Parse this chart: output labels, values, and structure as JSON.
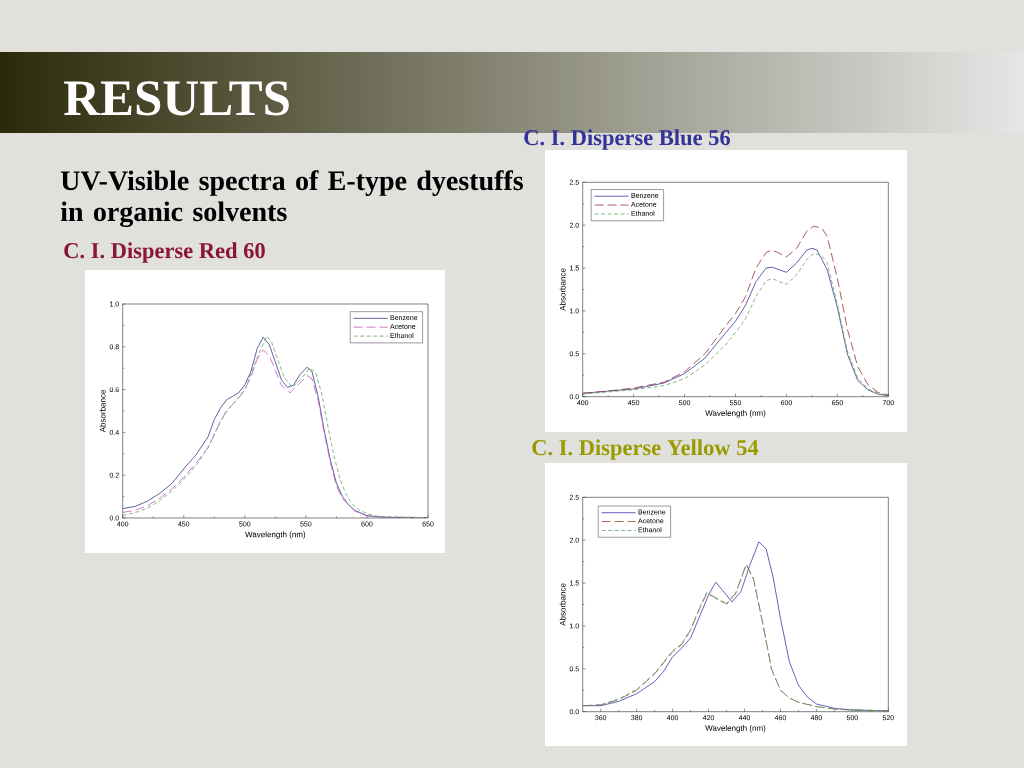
{
  "chart_data": [
    {
      "type": "line",
      "title": "C. I. Disperse Red 60",
      "annotations": [
        "RESULTS",
        "UV-Visible spectra of E-type dyestuffs in organic solvents"
      ],
      "xlabel": "Wavelength (nm)",
      "ylabel": "Absorbance",
      "xlim": [
        400,
        650
      ],
      "ylim": [
        0,
        1
      ],
      "xticks": [
        400,
        450,
        500,
        550,
        600,
        650
      ],
      "yticks": [
        {
          "value": 0,
          "label": "0.0"
        },
        0.2,
        0.4,
        0.6,
        0.8,
        {
          "value": 1,
          "label": "1.0"
        }
      ],
      "legend": "top right",
      "series": [
        {
          "name": "Benzene",
          "color": "#3a3a8c",
          "line_style": "solid",
          "x": [
            400,
            410,
            420,
            430,
            440,
            445,
            450,
            460,
            470,
            475,
            480,
            485,
            490,
            495,
            500,
            505,
            510,
            515,
            520,
            525,
            530,
            535,
            540,
            545,
            551,
            555,
            560,
            565,
            570,
            575,
            580,
            585,
            590,
            600,
            610,
            620,
            650
          ],
          "values": [
            0.044,
            0.054,
            0.078,
            0.114,
            0.16,
            0.194,
            0.23,
            0.295,
            0.38,
            0.46,
            0.513,
            0.552,
            0.568,
            0.586,
            0.622,
            0.684,
            0.79,
            0.845,
            0.81,
            0.73,
            0.645,
            0.61,
            0.622,
            0.669,
            0.705,
            0.684,
            0.568,
            0.41,
            0.272,
            0.163,
            0.1,
            0.062,
            0.036,
            0.011,
            0.005,
            0.003,
            0.002
          ]
        },
        {
          "name": "Acetone",
          "color": "#cc55cc",
          "line_style": "dashed",
          "x": [
            400,
            410,
            420,
            430,
            440,
            450,
            460,
            470,
            480,
            485,
            490,
            495,
            500,
            505,
            510,
            515,
            520,
            525,
            530,
            537,
            545,
            551,
            555,
            560,
            565,
            570,
            575,
            580,
            590,
            600,
            620,
            650
          ],
          "values": [
            0.026,
            0.036,
            0.057,
            0.09,
            0.135,
            0.19,
            0.255,
            0.33,
            0.45,
            0.5,
            0.53,
            0.56,
            0.6,
            0.66,
            0.74,
            0.785,
            0.76,
            0.69,
            0.62,
            0.585,
            0.63,
            0.665,
            0.65,
            0.55,
            0.4,
            0.26,
            0.15,
            0.09,
            0.032,
            0.01,
            0.003,
            0.002
          ]
        },
        {
          "name": "Ethanol",
          "color": "#66aa55",
          "line_style": "dashed",
          "x": [
            400,
            410,
            420,
            430,
            440,
            450,
            460,
            470,
            480,
            485,
            490,
            500,
            505,
            510,
            518,
            522,
            527,
            532,
            539,
            546,
            553,
            558,
            563,
            568,
            573,
            578,
            583,
            588,
            593,
            600,
            610,
            650
          ],
          "values": [
            0.012,
            0.025,
            0.045,
            0.08,
            0.125,
            0.18,
            0.245,
            0.33,
            0.45,
            0.5,
            0.53,
            0.6,
            0.67,
            0.75,
            0.85,
            0.82,
            0.74,
            0.66,
            0.61,
            0.65,
            0.7,
            0.68,
            0.58,
            0.43,
            0.29,
            0.18,
            0.11,
            0.065,
            0.04,
            0.02,
            0.006,
            0.002
          ]
        }
      ]
    },
    {
      "type": "line",
      "title": "C. I. Disperse Blue 56",
      "xlabel": "Wavelength (nm)",
      "ylabel": "Absorbance",
      "xlim": [
        400,
        700
      ],
      "ylim": [
        0,
        2.5
      ],
      "xticks": [
        400,
        450,
        500,
        550,
        600,
        650,
        700
      ],
      "yticks": [
        {
          "value": 0,
          "label": "0.0"
        },
        0.5,
        {
          "value": 1,
          "label": "1.0"
        },
        1.5,
        {
          "value": 2,
          "label": "2.0"
        },
        2.5
      ],
      "legend": "top left",
      "series": [
        {
          "name": "Benzene",
          "color": "#3a3a99",
          "line_style": "solid",
          "x": [
            400,
            420,
            450,
            480,
            500,
            520,
            540,
            550,
            560,
            570,
            580,
            586,
            593,
            600,
            610,
            620,
            625,
            630,
            640,
            650,
            660,
            670,
            680,
            690,
            700
          ],
          "values": [
            0.04,
            0.06,
            0.09,
            0.16,
            0.27,
            0.45,
            0.74,
            0.88,
            1.07,
            1.34,
            1.5,
            1.51,
            1.48,
            1.45,
            1.56,
            1.71,
            1.73,
            1.71,
            1.48,
            1.04,
            0.49,
            0.19,
            0.08,
            0.03,
            0.01
          ]
        },
        {
          "name": "Acetone",
          "color": "#993333",
          "line_style": "dashed",
          "x": [
            400,
            420,
            450,
            480,
            500,
            520,
            540,
            550,
            560,
            570,
            580,
            585,
            590,
            600,
            610,
            620,
            627,
            635,
            640,
            650,
            660,
            670,
            680,
            690,
            700
          ],
          "values": [
            0.04,
            0.06,
            0.1,
            0.17,
            0.29,
            0.5,
            0.82,
            0.97,
            1.17,
            1.5,
            1.68,
            1.71,
            1.69,
            1.63,
            1.73,
            1.93,
            1.99,
            1.96,
            1.87,
            1.38,
            0.78,
            0.35,
            0.14,
            0.05,
            0.02
          ]
        },
        {
          "name": "Ethanol",
          "color": "#66aa66",
          "line_style": "dashed",
          "x": [
            400,
            420,
            450,
            480,
            500,
            520,
            540,
            550,
            560,
            570,
            580,
            586,
            593,
            600,
            610,
            620,
            627,
            635,
            640,
            650,
            660,
            670,
            680,
            690,
            700
          ],
          "values": [
            0.03,
            0.05,
            0.08,
            0.13,
            0.21,
            0.37,
            0.6,
            0.75,
            0.91,
            1.17,
            1.35,
            1.38,
            1.34,
            1.31,
            1.42,
            1.6,
            1.67,
            1.64,
            1.56,
            1.08,
            0.52,
            0.22,
            0.09,
            0.04,
            0.01
          ]
        }
      ]
    },
    {
      "type": "line",
      "title": "C. I. Disperse Yellow 54",
      "xlabel": "Wavelength (nm)",
      "ylabel": "Absorbance",
      "xlim": [
        350,
        520
      ],
      "ylim": [
        0,
        2.5
      ],
      "xticks": [
        360,
        380,
        400,
        420,
        440,
        460,
        480,
        500,
        520
      ],
      "yticks": [
        {
          "value": 0,
          "label": "0.0"
        },
        0.5,
        {
          "value": 1,
          "label": "1.0"
        },
        1.5,
        {
          "value": 2,
          "label": "2.0"
        },
        2.5
      ],
      "legend": "top left",
      "series": [
        {
          "name": "Benzene",
          "color": "#3a3aaa",
          "line_style": "solid",
          "x": [
            350,
            360,
            370,
            380,
            390,
            395,
            400,
            405,
            410,
            415,
            420,
            424,
            428,
            433,
            438,
            443,
            448,
            452,
            456,
            460,
            465,
            470,
            475,
            480,
            490,
            500,
            520
          ],
          "values": [
            0.07,
            0.07,
            0.12,
            0.21,
            0.35,
            0.47,
            0.64,
            0.74,
            0.86,
            1.11,
            1.36,
            1.51,
            1.41,
            1.28,
            1.4,
            1.71,
            1.98,
            1.9,
            1.56,
            1.09,
            0.58,
            0.31,
            0.17,
            0.09,
            0.04,
            0.02,
            0.01
          ]
        },
        {
          "name": "Acetone",
          "color": "#8b4a2b",
          "line_style": "dashed",
          "x": [
            350,
            360,
            370,
            380,
            390,
            400,
            405,
            410,
            415,
            419,
            424,
            430,
            435,
            441,
            445,
            450,
            455,
            460,
            465,
            470,
            480,
            490,
            500,
            520
          ],
          "values": [
            0.07,
            0.08,
            0.14,
            0.25,
            0.44,
            0.7,
            0.78,
            0.95,
            1.2,
            1.38,
            1.33,
            1.26,
            1.38,
            1.72,
            1.55,
            1.05,
            0.5,
            0.25,
            0.16,
            0.11,
            0.06,
            0.03,
            0.02,
            0.01
          ]
        },
        {
          "name": "Ethanol",
          "color": "#55aa77",
          "line_style": "dashed",
          "x": [
            350,
            360,
            370,
            380,
            390,
            400,
            405,
            410,
            415,
            419,
            424,
            430,
            435,
            441,
            445,
            450,
            455,
            460,
            465,
            470,
            480,
            490,
            500,
            520
          ],
          "values": [
            0.07,
            0.08,
            0.15,
            0.26,
            0.45,
            0.71,
            0.79,
            0.96,
            1.21,
            1.39,
            1.32,
            1.25,
            1.37,
            1.71,
            1.54,
            1.04,
            0.5,
            0.25,
            0.16,
            0.11,
            0.06,
            0.03,
            0.02,
            0.01
          ]
        }
      ]
    }
  ]
}
